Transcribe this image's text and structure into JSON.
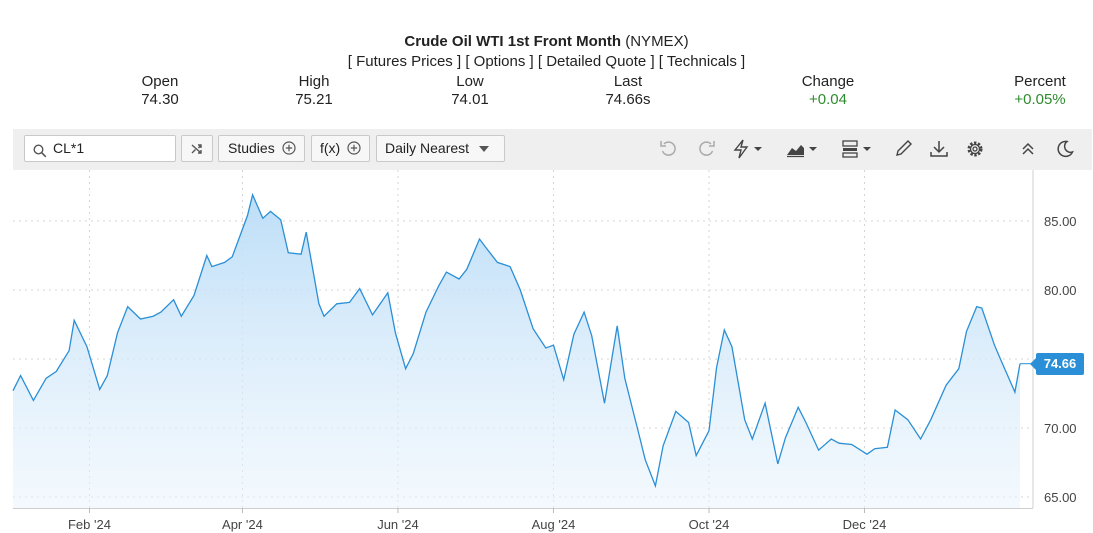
{
  "header": {
    "title_bold": "Crude Oil WTI 1st Front Month",
    "title_rest": "(NYMEX)",
    "links": [
      "[ Futures Prices ]",
      "[ Options ]",
      "[ Detailed Quote ]",
      "[ Technicals ]"
    ]
  },
  "quote": {
    "open_label": "Open",
    "open": "74.30",
    "high_label": "High",
    "high": "75.21",
    "low_label": "Low",
    "low": "74.01",
    "last_label": "Last",
    "last": "74.66s",
    "change_label": "Change",
    "change": "+0.04",
    "percent_label": "Percent",
    "percent": "+0.05%"
  },
  "toolbar": {
    "symbol": "CL*1",
    "studies_label": "Studies",
    "fx_label": "f(x)",
    "interval_label": "Daily Nearest"
  },
  "colors": {
    "line": "#2a8fd6",
    "positive": "#2e8b2e",
    "last_badge": "#2a8fd6"
  },
  "chart_data": {
    "type": "area",
    "x_tick_labels": [
      "Feb '24",
      "Apr '24",
      "Jun '24",
      "Aug '24",
      "Oct '24",
      "Dec '24"
    ],
    "y_ticks": [
      65.0,
      70.0,
      75.0,
      80.0,
      85.0
    ],
    "y_tick_labels": [
      "65.00",
      "70.00",
      "",
      "80.00",
      "85.00"
    ],
    "ylim": [
      64.2,
      88.7
    ],
    "last_value": 74.66,
    "last_label": "74.66",
    "x": [
      "2024-01-02",
      "2024-01-05",
      "2024-01-10",
      "2024-01-15",
      "2024-01-19",
      "2024-01-24",
      "2024-01-26",
      "2024-01-31",
      "2024-02-05",
      "2024-02-08",
      "2024-02-12",
      "2024-02-16",
      "2024-02-21",
      "2024-02-26",
      "2024-02-29",
      "2024-03-05",
      "2024-03-08",
      "2024-03-13",
      "2024-03-18",
      "2024-03-20",
      "2024-03-25",
      "2024-03-28",
      "2024-04-03",
      "2024-04-05",
      "2024-04-09",
      "2024-04-12",
      "2024-04-16",
      "2024-04-19",
      "2024-04-24",
      "2024-04-26",
      "2024-05-01",
      "2024-05-03",
      "2024-05-08",
      "2024-05-13",
      "2024-05-17",
      "2024-05-22",
      "2024-05-28",
      "2024-05-31",
      "2024-06-04",
      "2024-06-07",
      "2024-06-12",
      "2024-06-17",
      "2024-06-20",
      "2024-06-25",
      "2024-06-28",
      "2024-07-03",
      "2024-07-05",
      "2024-07-10",
      "2024-07-15",
      "2024-07-19",
      "2024-07-24",
      "2024-07-29",
      "2024-08-01",
      "2024-08-05",
      "2024-08-09",
      "2024-08-13",
      "2024-08-16",
      "2024-08-21",
      "2024-08-26",
      "2024-08-29",
      "2024-09-04",
      "2024-09-06",
      "2024-09-10",
      "2024-09-13",
      "2024-09-18",
      "2024-09-23",
      "2024-09-26",
      "2024-10-01",
      "2024-10-04",
      "2024-10-07",
      "2024-10-10",
      "2024-10-15",
      "2024-10-18",
      "2024-10-23",
      "2024-10-28",
      "2024-10-31",
      "2024-11-05",
      "2024-11-08",
      "2024-11-13",
      "2024-11-18",
      "2024-11-21",
      "2024-11-26",
      "2024-12-02",
      "2024-12-05",
      "2024-12-10",
      "2024-12-13",
      "2024-12-18",
      "2024-12-23",
      "2024-12-27",
      "2025-01-02",
      "2025-01-07",
      "2025-01-10",
      "2025-01-14",
      "2025-01-16",
      "2025-01-21",
      "2025-01-24",
      "2025-01-29",
      "2025-01-31"
    ],
    "values": [
      72.7,
      73.8,
      72.0,
      73.6,
      74.1,
      75.6,
      77.8,
      75.9,
      72.8,
      73.8,
      76.9,
      78.8,
      77.9,
      78.1,
      78.4,
      79.3,
      78.1,
      79.6,
      82.5,
      81.7,
      82.0,
      82.4,
      85.4,
      86.9,
      85.2,
      85.7,
      85.1,
      82.7,
      82.6,
      84.2,
      79.0,
      78.1,
      79.0,
      79.1,
      80.1,
      78.2,
      79.8,
      76.9,
      74.3,
      75.4,
      78.4,
      80.3,
      81.3,
      80.8,
      81.5,
      83.7,
      83.2,
      82.0,
      81.7,
      80.0,
      77.2,
      75.8,
      76.0,
      73.5,
      76.8,
      78.4,
      76.7,
      71.8,
      77.4,
      73.6,
      69.2,
      67.7,
      65.8,
      68.7,
      71.2,
      70.4,
      68.0,
      69.8,
      74.4,
      77.1,
      75.9,
      70.6,
      69.2,
      71.8,
      67.4,
      69.3,
      71.5,
      70.4,
      68.4,
      69.2,
      68.9,
      68.8,
      68.1,
      68.5,
      68.6,
      71.3,
      70.6,
      69.2,
      70.6,
      73.1,
      74.3,
      77.0,
      78.8,
      78.7,
      76.0,
      74.7,
      72.6,
      74.66
    ]
  }
}
